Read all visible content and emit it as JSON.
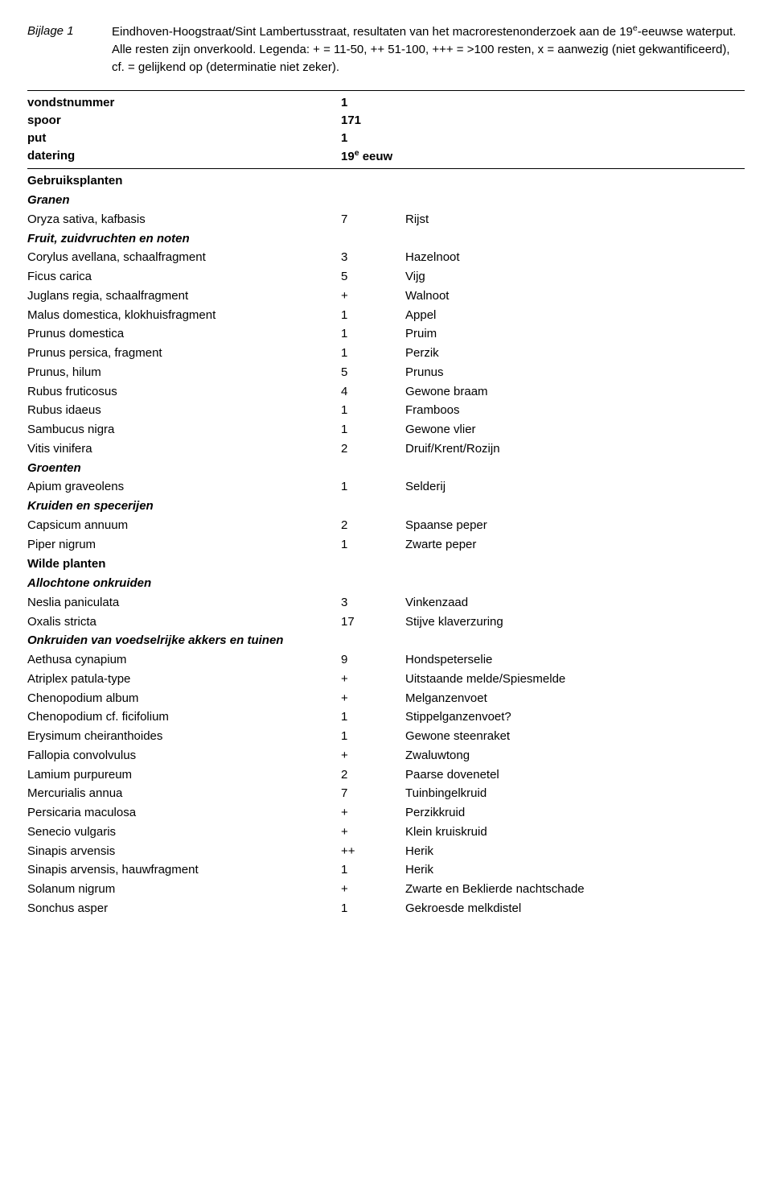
{
  "header": {
    "label": "Bijlage 1",
    "text_parts": [
      "Eindhoven-Hoogstraat/Sint Lambertusstraat, resultaten van het macrorestenonderzoek aan de 19",
      "-eeuwse waterput. Alle resten zijn onverkoold. Legenda: + = 11-50, ++ 51-100, +++ = >100 resten, x = aanwezig (niet gekwantificeerd), cf. = gelijkend op (determinatie niet zeker)."
    ],
    "super": "e"
  },
  "meta": [
    {
      "label": "vondstnummer",
      "value": "1"
    },
    {
      "label": "spoor",
      "value": "171"
    },
    {
      "label": "put",
      "value": "1"
    },
    {
      "label": "datering",
      "value_pre": "19",
      "value_sup": "e",
      "value_post": " eeuw"
    }
  ],
  "sections": [
    {
      "type": "bold",
      "text": "Gebruiksplanten"
    },
    {
      "type": "bi",
      "text": "Granen"
    },
    {
      "type": "row",
      "name": "Oryza sativa, kafbasis",
      "val": "7",
      "note": "Rijst"
    },
    {
      "type": "bi",
      "text": "Fruit, zuidvruchten en noten"
    },
    {
      "type": "row",
      "name": "Corylus avellana, schaalfragment",
      "val": "3",
      "note": "Hazelnoot"
    },
    {
      "type": "row",
      "name": "Ficus carica",
      "val": "5",
      "note": "Vijg"
    },
    {
      "type": "row",
      "name": "Juglans regia, schaalfragment",
      "val": "+",
      "note": "Walnoot"
    },
    {
      "type": "row",
      "name": "Malus domestica, klokhuisfragment",
      "val": "1",
      "note": "Appel"
    },
    {
      "type": "row",
      "name": "Prunus domestica",
      "val": "1",
      "note": "Pruim"
    },
    {
      "type": "row",
      "name": "Prunus persica, fragment",
      "val": "1",
      "note": "Perzik"
    },
    {
      "type": "row",
      "name": "Prunus, hilum",
      "val": "5",
      "note": "Prunus"
    },
    {
      "type": "row",
      "name": "Rubus fruticosus",
      "val": "4",
      "note": "Gewone braam"
    },
    {
      "type": "row",
      "name": "Rubus idaeus",
      "val": "1",
      "note": "Framboos"
    },
    {
      "type": "row",
      "name": "Sambucus nigra",
      "val": "1",
      "note": "Gewone vlier"
    },
    {
      "type": "row",
      "name": "Vitis vinifera",
      "val": "2",
      "note": "Druif/Krent/Rozijn"
    },
    {
      "type": "bi",
      "text": "Groenten"
    },
    {
      "type": "row",
      "name": "Apium graveolens",
      "val": "1",
      "note": "Selderij"
    },
    {
      "type": "bi",
      "text": "Kruiden en specerijen"
    },
    {
      "type": "row",
      "name": "Capsicum annuum",
      "val": "2",
      "note": "Spaanse peper"
    },
    {
      "type": "row",
      "name": "Piper nigrum",
      "val": "1",
      "note": "Zwarte peper"
    },
    {
      "type": "bold",
      "text": "Wilde planten"
    },
    {
      "type": "bi",
      "text": "Allochtone onkruiden"
    },
    {
      "type": "row",
      "name": "Neslia paniculata",
      "val": "3",
      "note": "Vinkenzaad"
    },
    {
      "type": "row",
      "name": "Oxalis stricta",
      "val": "17",
      "note": "Stijve klaverzuring"
    },
    {
      "type": "bi",
      "text": "Onkruiden van voedselrijke akkers en tuinen"
    },
    {
      "type": "row",
      "name": "Aethusa cynapium",
      "val": "9",
      "note": "Hondspeterselie"
    },
    {
      "type": "row",
      "name": "Atriplex patula-type",
      "val": "+",
      "note": "Uitstaande melde/Spiesmelde"
    },
    {
      "type": "row",
      "name": "Chenopodium album",
      "val": "+",
      "note": "Melganzenvoet"
    },
    {
      "type": "row",
      "name": "Chenopodium cf. ficifolium",
      "val": "1",
      "note": "Stippelganzenvoet?"
    },
    {
      "type": "row",
      "name": "Erysimum cheiranthoides",
      "val": "1",
      "note": "Gewone steenraket"
    },
    {
      "type": "row",
      "name": "Fallopia convolvulus",
      "val": "+",
      "note": "Zwaluwtong"
    },
    {
      "type": "row",
      "name": "Lamium purpureum",
      "val": "2",
      "note": "Paarse dovenetel"
    },
    {
      "type": "row",
      "name": "Mercurialis annua",
      "val": "7",
      "note": "Tuinbingelkruid"
    },
    {
      "type": "row",
      "name": "Persicaria maculosa",
      "val": "+",
      "note": "Perzikkruid"
    },
    {
      "type": "row",
      "name": "Senecio vulgaris",
      "val": "+",
      "note": "Klein kruiskruid"
    },
    {
      "type": "row",
      "name": "Sinapis arvensis",
      "val": "++",
      "note": "Herik"
    },
    {
      "type": "row",
      "name": "Sinapis arvensis, hauwfragment",
      "val": "1",
      "note": "Herik"
    },
    {
      "type": "row",
      "name": "Solanum nigrum",
      "val": "+",
      "note": "Zwarte en Beklierde nachtschade"
    },
    {
      "type": "row",
      "name": "Sonchus asper",
      "val": "1",
      "note": "Gekroesde melkdistel"
    }
  ]
}
